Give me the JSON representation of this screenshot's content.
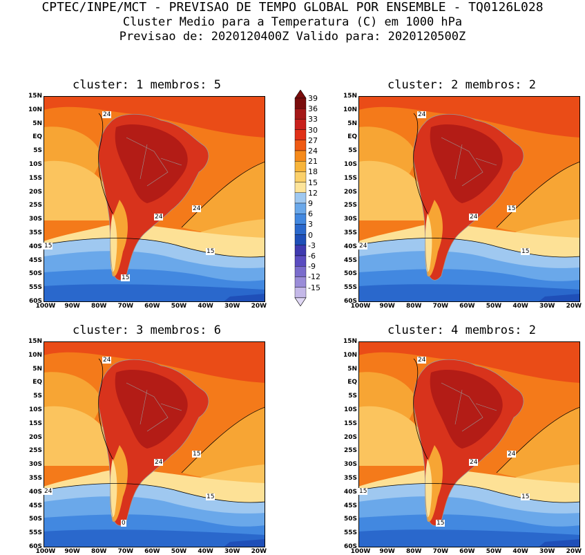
{
  "header": {
    "line1": "CPTEC/INPE/MCT - PREVISAO DE TEMPO GLOBAL POR ENSEMBLE - TQ0126L028",
    "line2": "Cluster Medio para a Temperatura (C) em 1000 hPa",
    "line3": "Previsao de: 2020120400Z   Valido para: 2020120500Z"
  },
  "panels": [
    {
      "title": "cluster: 1  membros: 5",
      "labels": [
        "24",
        "24",
        "24",
        "15",
        "15",
        "15"
      ]
    },
    {
      "title": "cluster: 2  membros: 2",
      "labels": [
        "24",
        "15",
        "24",
        "24",
        "15"
      ]
    },
    {
      "title": "cluster: 3  membros: 6",
      "labels": [
        "24",
        "15",
        "24",
        "24",
        "15",
        "0"
      ]
    },
    {
      "title": "cluster: 4  membros: 2",
      "labels": [
        "24",
        "24",
        "24",
        "15",
        "15",
        "15"
      ]
    }
  ],
  "axes": {
    "yticks": [
      "15N",
      "10N",
      "5N",
      "EQ",
      "5S",
      "10S",
      "15S",
      "20S",
      "25S",
      "30S",
      "35S",
      "40S",
      "45S",
      "50S",
      "55S",
      "60S"
    ],
    "xticks": [
      "100W",
      "90W",
      "80W",
      "70W",
      "60W",
      "50W",
      "40W",
      "30W",
      "20W"
    ]
  },
  "colorbar": {
    "labels": [
      "39",
      "36",
      "33",
      "30",
      "27",
      "24",
      "21",
      "18",
      "15",
      "12",
      "9",
      "6",
      "3",
      "0",
      "-3",
      "-6",
      "-9",
      "-12",
      "-15"
    ],
    "colors": [
      "#7a0c0c",
      "#a41818",
      "#c8201c",
      "#e03018",
      "#ef5a14",
      "#f58a1a",
      "#f7b43a",
      "#fbd06a",
      "#fde49a",
      "#9fc8f0",
      "#6aa8ea",
      "#4288e0",
      "#2a68cc",
      "#1f4fb8",
      "#3f3ab0",
      "#5a4cc0",
      "#7a6ccc",
      "#9a8cd8",
      "#c4b8e8"
    ]
  }
}
